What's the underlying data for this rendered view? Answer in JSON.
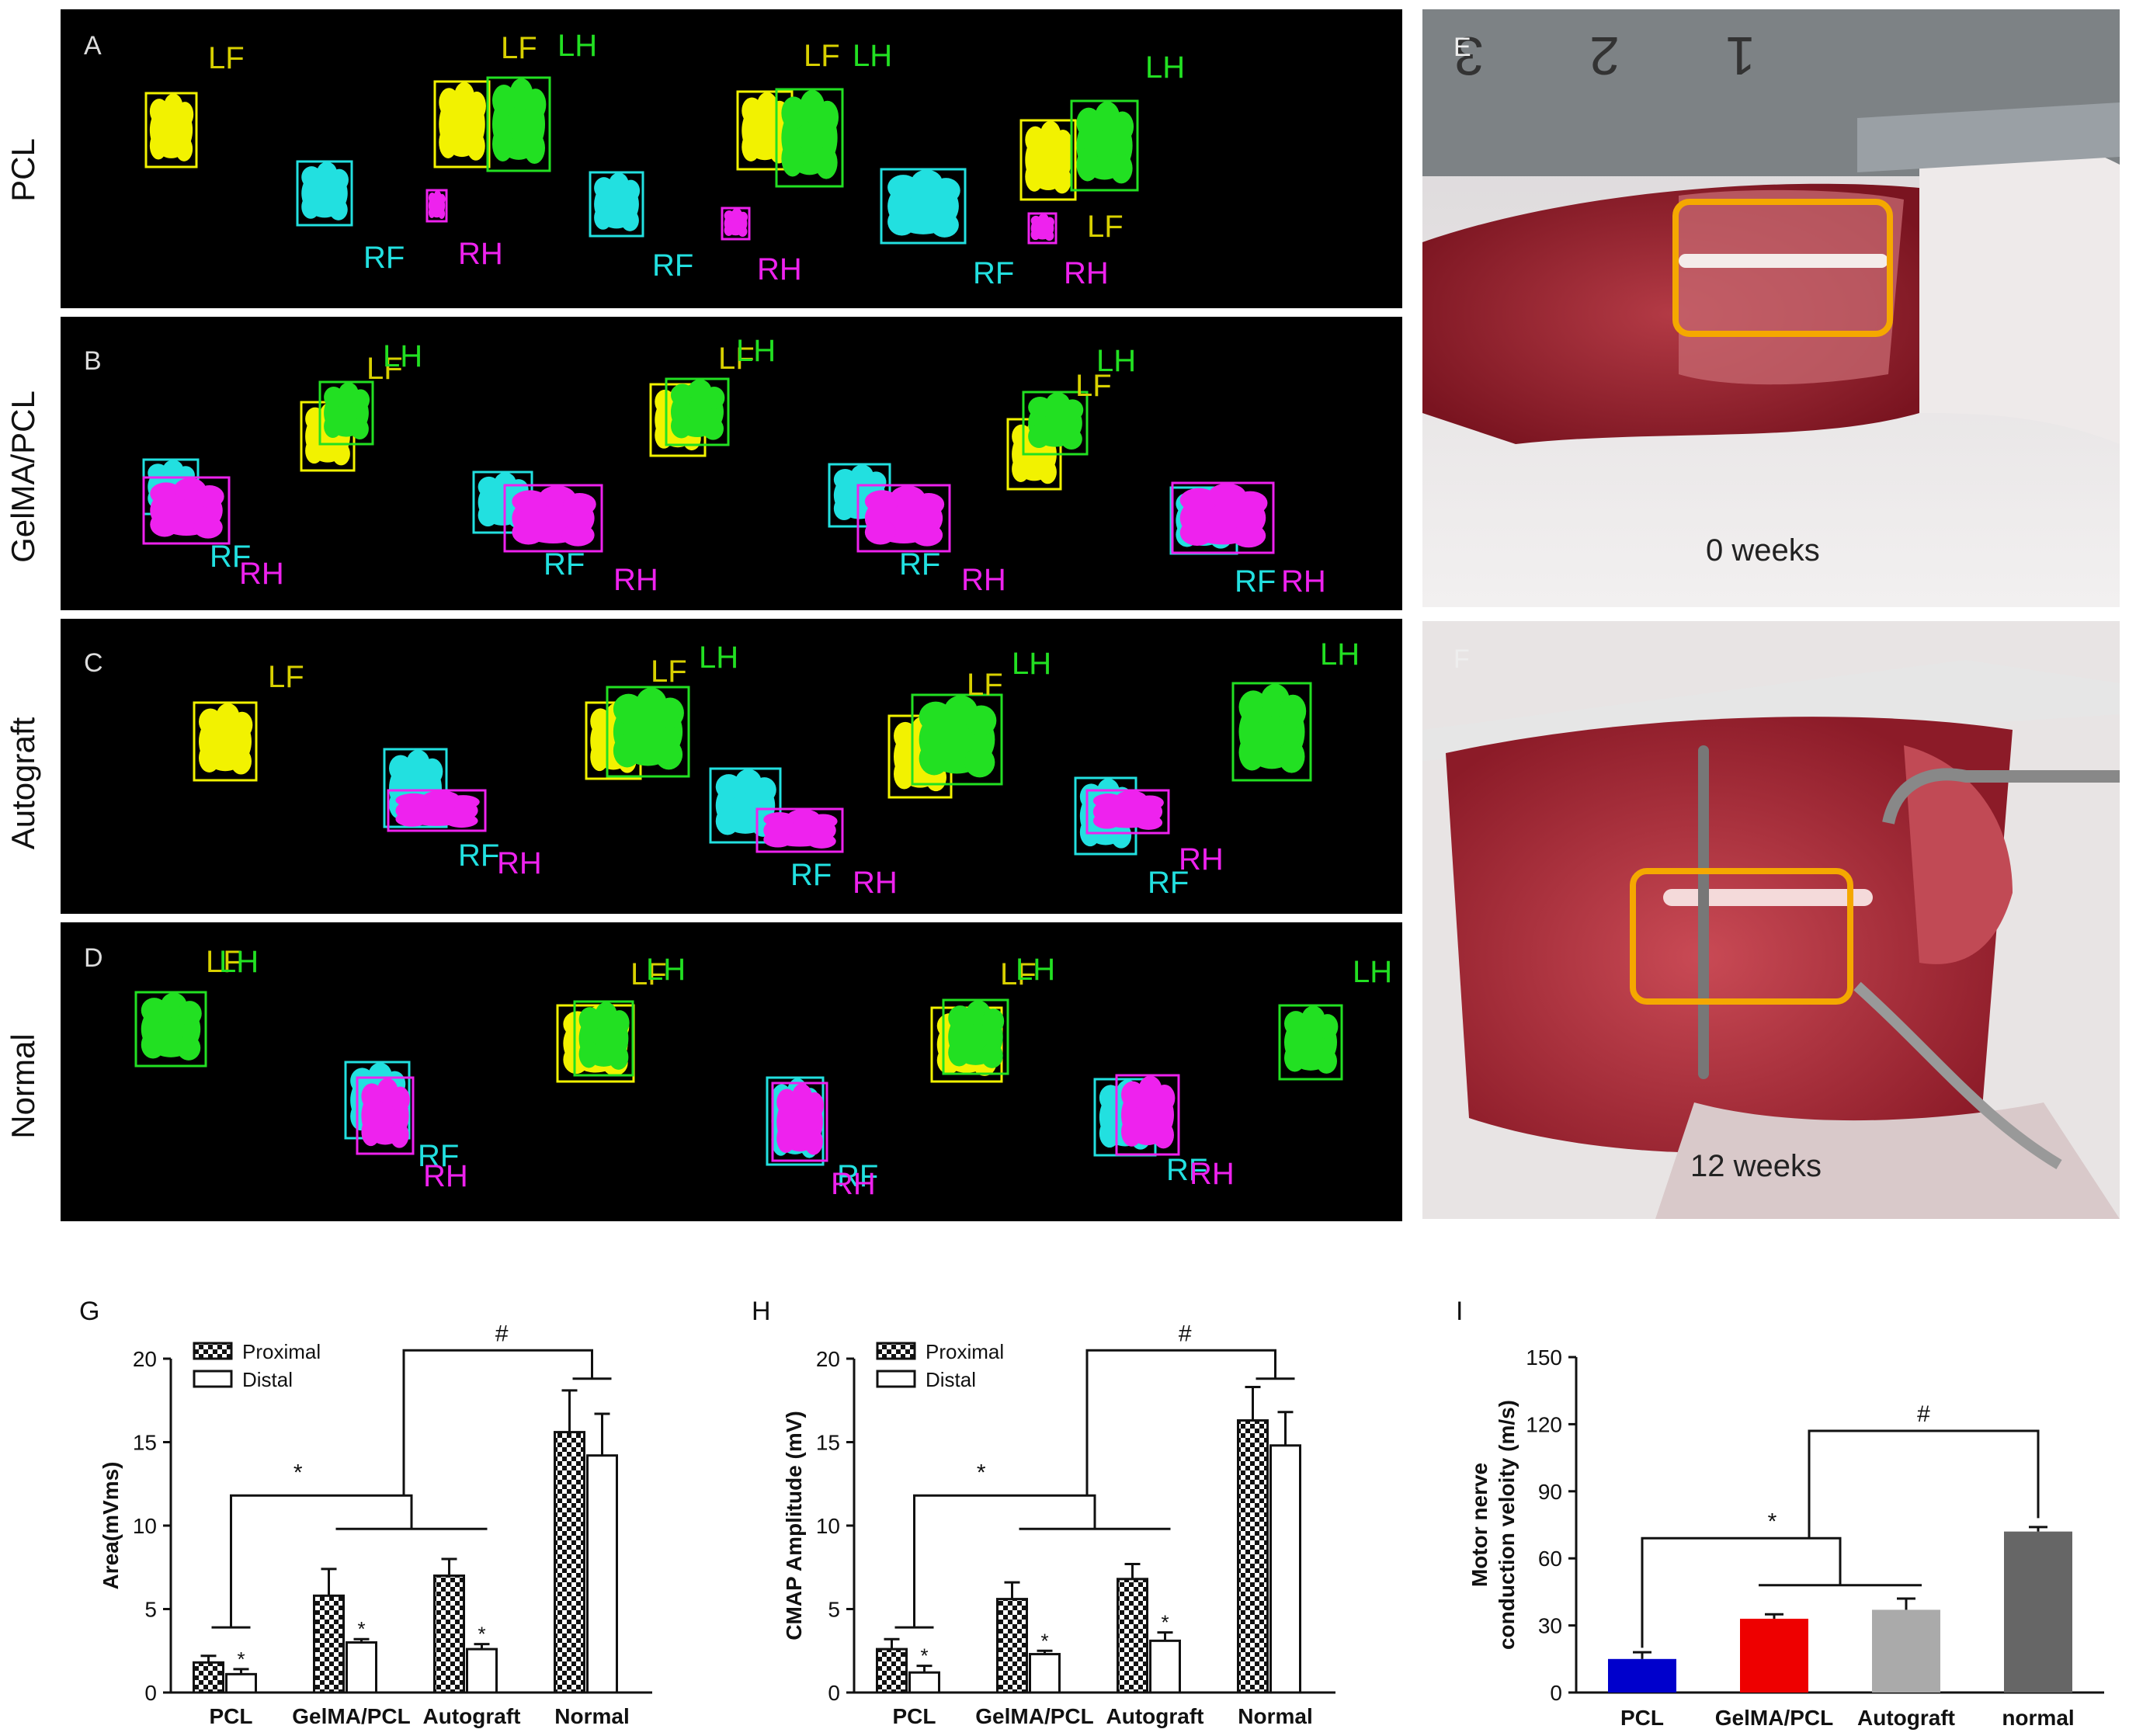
{
  "panels": {
    "A": "A",
    "B": "B",
    "C": "C",
    "D": "D",
    "E": "E",
    "F": "F",
    "G": "G",
    "H": "H",
    "I": "I"
  },
  "rows": [
    "PCL",
    "GelMA/PCL",
    "Autograft",
    "Normal"
  ],
  "paw_labels": {
    "LF": "LF",
    "LH": "LH",
    "RF": "RF",
    "RH": "RH"
  },
  "paw_colors": {
    "LF": "#f2f200",
    "LH": "#22e022",
    "RF": "#22e0e0",
    "RH": "#ee22ee"
  },
  "photos": {
    "E": {
      "caption": "0  weeks",
      "ruler_digits": [
        "3",
        "2",
        "1"
      ]
    },
    "F": {
      "caption": "12  weeks"
    }
  },
  "chart_data": [
    {
      "type": "bar",
      "panel": "G",
      "categories": [
        "PCL",
        "GelMA/PCL",
        "Autograft",
        "Normal"
      ],
      "series": [
        {
          "name": "Proximal",
          "values": [
            1.8,
            5.8,
            7.0,
            15.6
          ],
          "errors": [
            0.4,
            1.6,
            1.0,
            2.5
          ],
          "pattern": "checker"
        },
        {
          "name": "Distal",
          "values": [
            1.1,
            3.0,
            2.6,
            14.2
          ],
          "errors": [
            0.3,
            0.2,
            0.3,
            2.5
          ],
          "pattern": "white"
        }
      ],
      "ylabel": "Area(mVms)",
      "ylim": [
        0,
        20
      ],
      "yticks": [
        0,
        5,
        10,
        15,
        20
      ],
      "legend": "top-left",
      "significance": [
        "*",
        "*",
        "*",
        "*",
        "#"
      ]
    },
    {
      "type": "bar",
      "panel": "H",
      "categories": [
        "PCL",
        "GelMA/PCL",
        "Autograft",
        "Normal"
      ],
      "series": [
        {
          "name": "Proximal",
          "values": [
            2.6,
            5.6,
            6.8,
            16.3
          ],
          "errors": [
            0.6,
            1.0,
            0.9,
            2.0
          ],
          "pattern": "checker"
        },
        {
          "name": "Distal",
          "values": [
            1.2,
            2.3,
            3.1,
            14.8
          ],
          "errors": [
            0.4,
            0.2,
            0.5,
            2.0
          ],
          "pattern": "white"
        }
      ],
      "ylabel": "CMAP Amplitude (mV)",
      "ylim": [
        0,
        20
      ],
      "yticks": [
        0,
        5,
        10,
        15,
        20
      ],
      "legend": "top-left",
      "significance": [
        "*",
        "*",
        "*",
        "*",
        "#"
      ]
    },
    {
      "type": "bar",
      "panel": "I",
      "categories": [
        "PCL",
        "GelMA/PCL",
        "Autograft",
        "normal"
      ],
      "series": [
        {
          "values": [
            15,
            33,
            37,
            72
          ],
          "errors": [
            3,
            2,
            5,
            2
          ]
        }
      ],
      "colors": [
        "#0000cc",
        "#ee0000",
        "#aaaaaa",
        "#666666"
      ],
      "ylabel": "Motor nerve conduction veloity (m/s)",
      "ylabel_lines": [
        "Motor nerve",
        "conduction veloity (m/s)"
      ],
      "ylim": [
        0,
        150
      ],
      "yticks": [
        0,
        30,
        60,
        90,
        120,
        150
      ],
      "significance": [
        "*",
        "#"
      ]
    }
  ]
}
